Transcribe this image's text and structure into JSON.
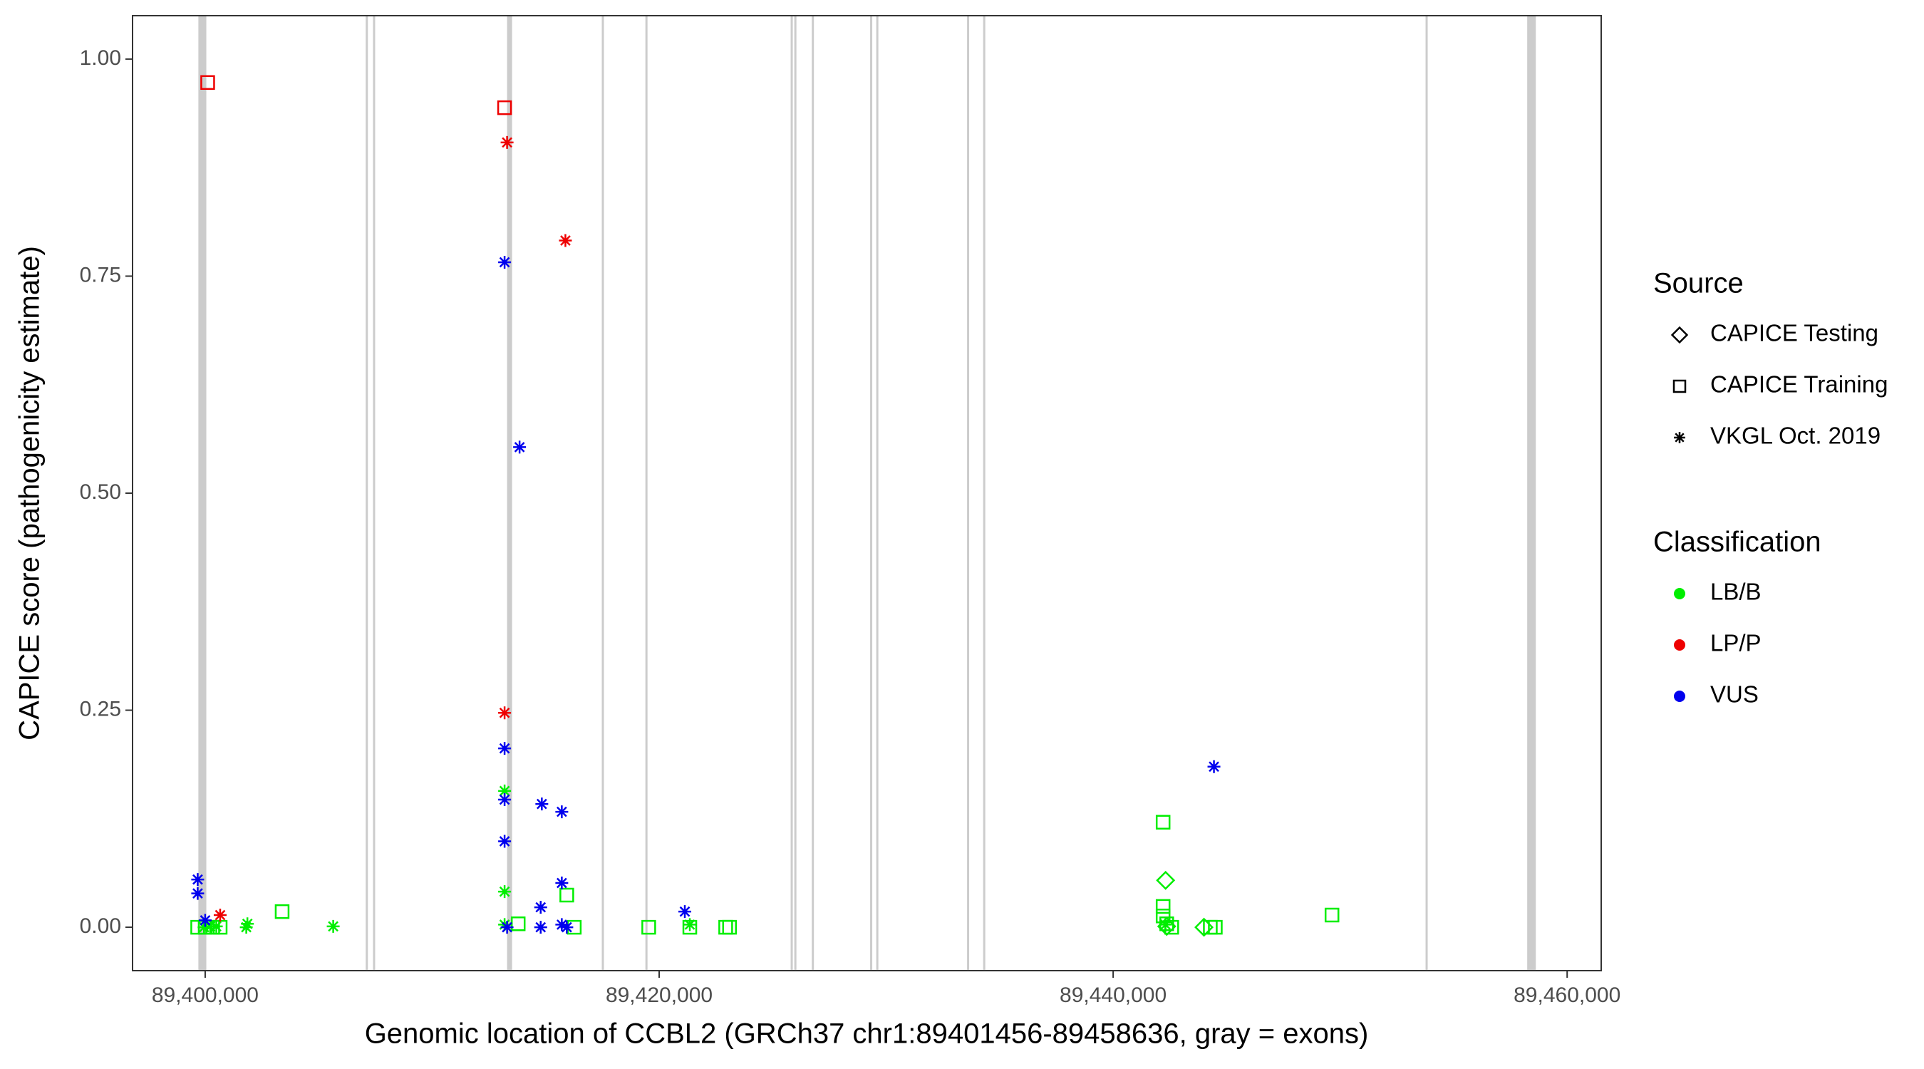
{
  "chart_data": {
    "type": "scatter",
    "x_label": "Genomic location of CCBL2 (GRCh37 chr1:89401456-89458636, gray = exons)",
    "y_label": "CAPICE score (pathogenicity estimate)",
    "xlim": [
      89396800,
      89461500
    ],
    "ylim": [
      -0.05,
      1.05
    ],
    "xticks": [
      {
        "value": 89400000,
        "label": "89,400,000"
      },
      {
        "value": 89420000,
        "label": "89,420,000"
      },
      {
        "value": 89440000,
        "label": "89,440,000"
      },
      {
        "value": 89460000,
        "label": "89,460,000"
      }
    ],
    "yticks": [
      {
        "value": 0,
        "label": "0.00"
      },
      {
        "value": 0.25,
        "label": "0.25"
      },
      {
        "value": 0.5,
        "label": "0.50"
      },
      {
        "value": 0.75,
        "label": "0.75"
      },
      {
        "value": 1,
        "label": "1.00"
      }
    ],
    "grid": false,
    "exon_color": "#cccccc",
    "exons": [
      [
        89399700,
        89400050
      ],
      [
        89407080,
        89407160
      ],
      [
        89407400,
        89407480
      ],
      [
        89413300,
        89413520
      ],
      [
        89417480,
        89417560
      ],
      [
        89419400,
        89419480
      ],
      [
        89425800,
        89425880
      ],
      [
        89425960,
        89426040
      ],
      [
        89426730,
        89426810
      ],
      [
        89429300,
        89429380
      ],
      [
        89429570,
        89429650
      ],
      [
        89433570,
        89433650
      ],
      [
        89434280,
        89434360
      ],
      [
        89453770,
        89453850
      ],
      [
        89458240,
        89458620
      ]
    ],
    "legend_source": {
      "title": "Source",
      "items": [
        {
          "name": "CAPICE Testing",
          "shape": "diamond"
        },
        {
          "name": "CAPICE Training",
          "shape": "square"
        },
        {
          "name": "VKGL Oct. 2019",
          "shape": "star"
        }
      ]
    },
    "legend_class_title": "Classification",
    "series": [
      {
        "name": "LB/B",
        "color": "#00ee00",
        "x": [
          89399670,
          89400000,
          89400330,
          89400660,
          89403390,
          89413790,
          89415930,
          89416260,
          89419540,
          89421350,
          89422930,
          89423100,
          89442200,
          89442200,
          89442200,
          89442360,
          89442580,
          89444280,
          89444500,
          89449640,
          89399950,
          89400220,
          89400490,
          89401810,
          89401860,
          89405640,
          89413190,
          89413190,
          89413190,
          89421350,
          89442310,
          89442310,
          89444000,
          89442360
        ],
        "values": [
          0,
          0,
          0,
          0,
          0.018,
          0.004,
          0.037,
          0,
          0,
          0,
          0,
          0,
          0.121,
          0.024,
          0.013,
          0.004,
          0,
          0,
          0,
          0.014,
          0,
          0.001,
          0.001,
          0,
          0.004,
          0.001,
          0.041,
          0.157,
          0.003,
          0.003,
          0.003,
          0.054,
          0,
          0.001
        ],
        "shapes": [
          "square",
          "square",
          "square",
          "square",
          "square",
          "square",
          "square",
          "square",
          "square",
          "square",
          "square",
          "square",
          "square",
          "square",
          "square",
          "square",
          "square",
          "square",
          "square",
          "square",
          "star",
          "star",
          "star",
          "star",
          "star",
          "star",
          "star",
          "star",
          "star",
          "star",
          "star",
          "diamond",
          "diamond",
          "diamond"
        ]
      },
      {
        "name": "LP/P",
        "color": "#ee0000",
        "x": [
          89400110,
          89413190,
          89413300,
          89415870,
          89413190,
          89400660
        ],
        "values": [
          0.973,
          0.944,
          0.904,
          0.791,
          0.247,
          0.014
        ],
        "shapes": [
          "square",
          "square",
          "star",
          "star",
          "star",
          "star"
        ]
      },
      {
        "name": "VUS",
        "color": "#0000ee",
        "x": [
          89399670,
          89399670,
          89400000,
          89413190,
          89413190,
          89413190,
          89413190,
          89413300,
          89413850,
          89414830,
          89414780,
          89414780,
          89415710,
          89415710,
          89415710,
          89415930,
          89421130,
          89444440
        ],
        "values": [
          0.055,
          0.039,
          0.008,
          0.766,
          0.206,
          0.147,
          0.099,
          0,
          0.553,
          0.142,
          0.023,
          0,
          0.133,
          0.051,
          0.003,
          0,
          0.018,
          0.185
        ],
        "shapes": [
          "star",
          "star",
          "star",
          "star",
          "star",
          "star",
          "star",
          "star",
          "star",
          "star",
          "star",
          "star",
          "star",
          "star",
          "star",
          "star",
          "star",
          "star"
        ]
      }
    ]
  }
}
